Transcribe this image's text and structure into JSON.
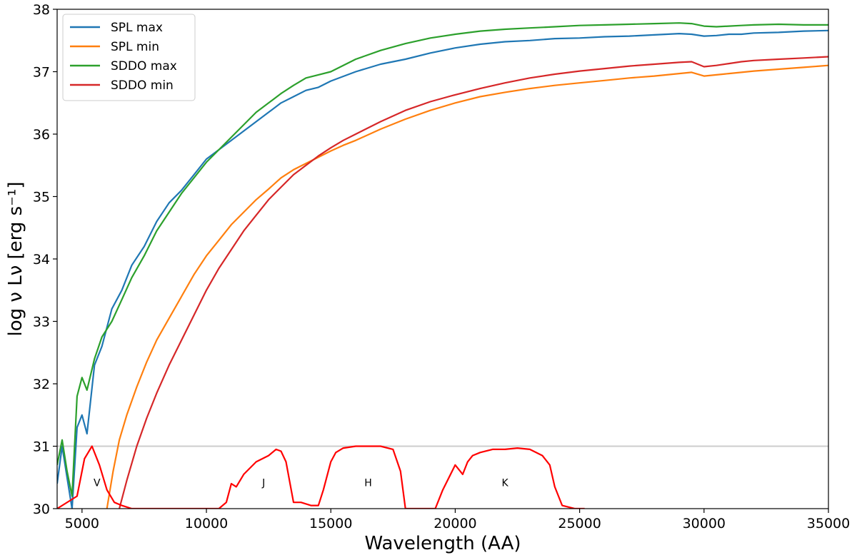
{
  "chart_data": {
    "type": "line",
    "title": "",
    "xlabel": "Wavelength (AA)",
    "ylabel": "log ν Lν   [erg s⁻¹]",
    "xlim": [
      4000,
      35000
    ],
    "ylim": [
      30,
      38
    ],
    "xticks": [
      5000,
      10000,
      15000,
      20000,
      25000,
      30000,
      35000
    ],
    "xtick_labels": [
      "5000",
      "10000",
      "15000",
      "20000",
      "25000",
      "30000",
      "35000"
    ],
    "yticks": [
      30,
      31,
      32,
      33,
      34,
      35,
      36,
      37,
      38
    ],
    "ytick_labels": [
      "30",
      "31",
      "32",
      "33",
      "34",
      "35",
      "36",
      "37",
      "38"
    ],
    "grid": false,
    "legend_position": "top-left",
    "reference_line": {
      "y": 31,
      "color": "#cccccc"
    },
    "series": [
      {
        "name": "SPL max",
        "color": "#1f77b4",
        "x": [
          4000,
          4200,
          4400,
          4600,
          4800,
          5000,
          5200,
          5500,
          5800,
          6200,
          6600,
          7000,
          7500,
          8000,
          8500,
          9000,
          9500,
          10000,
          10500,
          11000,
          11500,
          12000,
          12500,
          13000,
          13500,
          14000,
          14500,
          15000,
          16000,
          17000,
          18000,
          19000,
          20000,
          21000,
          22000,
          23000,
          24000,
          25000,
          26000,
          27000,
          28000,
          29000,
          29500,
          30000,
          30500,
          31000,
          31500,
          32000,
          33000,
          34000,
          35000
        ],
        "y": [
          30.4,
          31.0,
          30.5,
          30.0,
          31.3,
          31.5,
          31.2,
          32.3,
          32.6,
          33.2,
          33.5,
          33.9,
          34.2,
          34.6,
          34.9,
          35.1,
          35.35,
          35.6,
          35.75,
          35.9,
          36.05,
          36.2,
          36.35,
          36.5,
          36.6,
          36.7,
          36.75,
          36.85,
          37.0,
          37.12,
          37.2,
          37.3,
          37.38,
          37.44,
          37.48,
          37.5,
          37.53,
          37.54,
          37.56,
          37.57,
          37.59,
          37.61,
          37.6,
          37.57,
          37.58,
          37.6,
          37.6,
          37.62,
          37.63,
          37.65,
          37.66
        ]
      },
      {
        "name": "SPL min",
        "color": "#ff7f0e",
        "x": [
          6000,
          6250,
          6500,
          6800,
          7200,
          7600,
          8000,
          8500,
          9000,
          9500,
          10000,
          10500,
          11000,
          11500,
          12000,
          12500,
          13000,
          13500,
          14000,
          14500,
          15000,
          15500,
          16000,
          17000,
          18000,
          19000,
          20000,
          21000,
          22000,
          23000,
          24000,
          25000,
          26000,
          27000,
          28000,
          29000,
          29500,
          30000,
          30500,
          31000,
          31500,
          32000,
          33000,
          34000,
          35000
        ],
        "y": [
          30.0,
          30.6,
          31.1,
          31.5,
          31.95,
          32.35,
          32.7,
          33.05,
          33.4,
          33.75,
          34.05,
          34.3,
          34.55,
          34.75,
          34.95,
          35.12,
          35.3,
          35.43,
          35.53,
          35.63,
          35.73,
          35.82,
          35.9,
          36.08,
          36.24,
          36.38,
          36.5,
          36.6,
          36.67,
          36.73,
          36.78,
          36.82,
          36.86,
          36.9,
          36.93,
          36.97,
          36.99,
          36.93,
          36.95,
          36.97,
          36.99,
          37.01,
          37.04,
          37.07,
          37.1
        ]
      },
      {
        "name": "SDDO max",
        "color": "#2ca02c",
        "x": [
          4000,
          4200,
          4400,
          4600,
          4800,
          5000,
          5200,
          5500,
          5800,
          6200,
          6600,
          7000,
          7500,
          8000,
          8500,
          9000,
          9500,
          10000,
          10500,
          11000,
          11500,
          12000,
          12500,
          13000,
          13500,
          14000,
          14500,
          15000,
          16000,
          17000,
          18000,
          19000,
          20000,
          21000,
          22000,
          23000,
          24000,
          25000,
          26000,
          27000,
          28000,
          29000,
          29500,
          30000,
          30500,
          31000,
          31500,
          32000,
          33000,
          34000,
          35000
        ],
        "y": [
          30.7,
          31.1,
          30.6,
          30.2,
          31.8,
          32.1,
          31.9,
          32.4,
          32.75,
          33.0,
          33.35,
          33.7,
          34.05,
          34.45,
          34.75,
          35.05,
          35.3,
          35.55,
          35.75,
          35.95,
          36.15,
          36.35,
          36.5,
          36.65,
          36.78,
          36.9,
          36.95,
          37.0,
          37.2,
          37.34,
          37.45,
          37.54,
          37.6,
          37.65,
          37.68,
          37.7,
          37.72,
          37.74,
          37.75,
          37.76,
          37.77,
          37.78,
          37.77,
          37.73,
          37.72,
          37.73,
          37.74,
          37.75,
          37.76,
          37.75,
          37.75
        ]
      },
      {
        "name": "SDDO min",
        "color": "#d62728",
        "x": [
          6500,
          6800,
          7200,
          7600,
          8000,
          8500,
          9000,
          9500,
          10000,
          10500,
          11000,
          11500,
          12000,
          12500,
          13000,
          13500,
          14000,
          14500,
          15000,
          15500,
          16000,
          17000,
          18000,
          19000,
          20000,
          21000,
          22000,
          23000,
          24000,
          25000,
          26000,
          27000,
          28000,
          29000,
          29500,
          30000,
          30500,
          31000,
          31500,
          32000,
          33000,
          34000,
          35000
        ],
        "y": [
          30.0,
          30.45,
          31.0,
          31.45,
          31.85,
          32.3,
          32.7,
          33.1,
          33.5,
          33.85,
          34.15,
          34.45,
          34.7,
          34.95,
          35.15,
          35.35,
          35.5,
          35.65,
          35.78,
          35.9,
          36.0,
          36.2,
          36.38,
          36.52,
          36.63,
          36.73,
          36.82,
          36.9,
          36.96,
          37.01,
          37.05,
          37.09,
          37.12,
          37.15,
          37.16,
          37.08,
          37.1,
          37.13,
          37.16,
          37.18,
          37.2,
          37.22,
          37.24
        ]
      }
    ],
    "filter_bands": {
      "color": "#ff0000",
      "curve": {
        "x": [
          4000,
          4800,
          5100,
          5400,
          5700,
          6000,
          6300,
          6600,
          7000,
          7500,
          10500,
          10800,
          11000,
          11200,
          11500,
          12000,
          12500,
          12800,
          13000,
          13200,
          13500,
          13800,
          14200,
          14500,
          14700,
          15000,
          15200,
          15500,
          16000,
          16500,
          17000,
          17500,
          17800,
          18000,
          18300,
          19200,
          19500,
          20000,
          20300,
          20500,
          20700,
          21000,
          21500,
          22000,
          22500,
          23000,
          23500,
          23800,
          24000,
          24300,
          24800,
          25200
        ],
        "y": [
          30.0,
          30.2,
          30.8,
          31.0,
          30.7,
          30.3,
          30.1,
          30.05,
          30.0,
          30.0,
          30.0,
          30.1,
          30.4,
          30.35,
          30.55,
          30.75,
          30.85,
          30.95,
          30.92,
          30.75,
          30.1,
          30.1,
          30.05,
          30.05,
          30.3,
          30.75,
          30.9,
          30.97,
          31.0,
          31.0,
          31.0,
          30.95,
          30.6,
          30.0,
          30.0,
          30.0,
          30.3,
          30.7,
          30.55,
          30.75,
          30.85,
          30.9,
          30.95,
          30.95,
          30.97,
          30.95,
          30.85,
          30.7,
          30.35,
          30.05,
          30.0,
          30.0
        ]
      },
      "labels": [
        {
          "text": "V",
          "x": 5600,
          "y": 30.36
        },
        {
          "text": "J",
          "x": 12300,
          "y": 30.36
        },
        {
          "text": "H",
          "x": 16500,
          "y": 30.36
        },
        {
          "text": "K",
          "x": 22000,
          "y": 30.36
        }
      ]
    }
  }
}
